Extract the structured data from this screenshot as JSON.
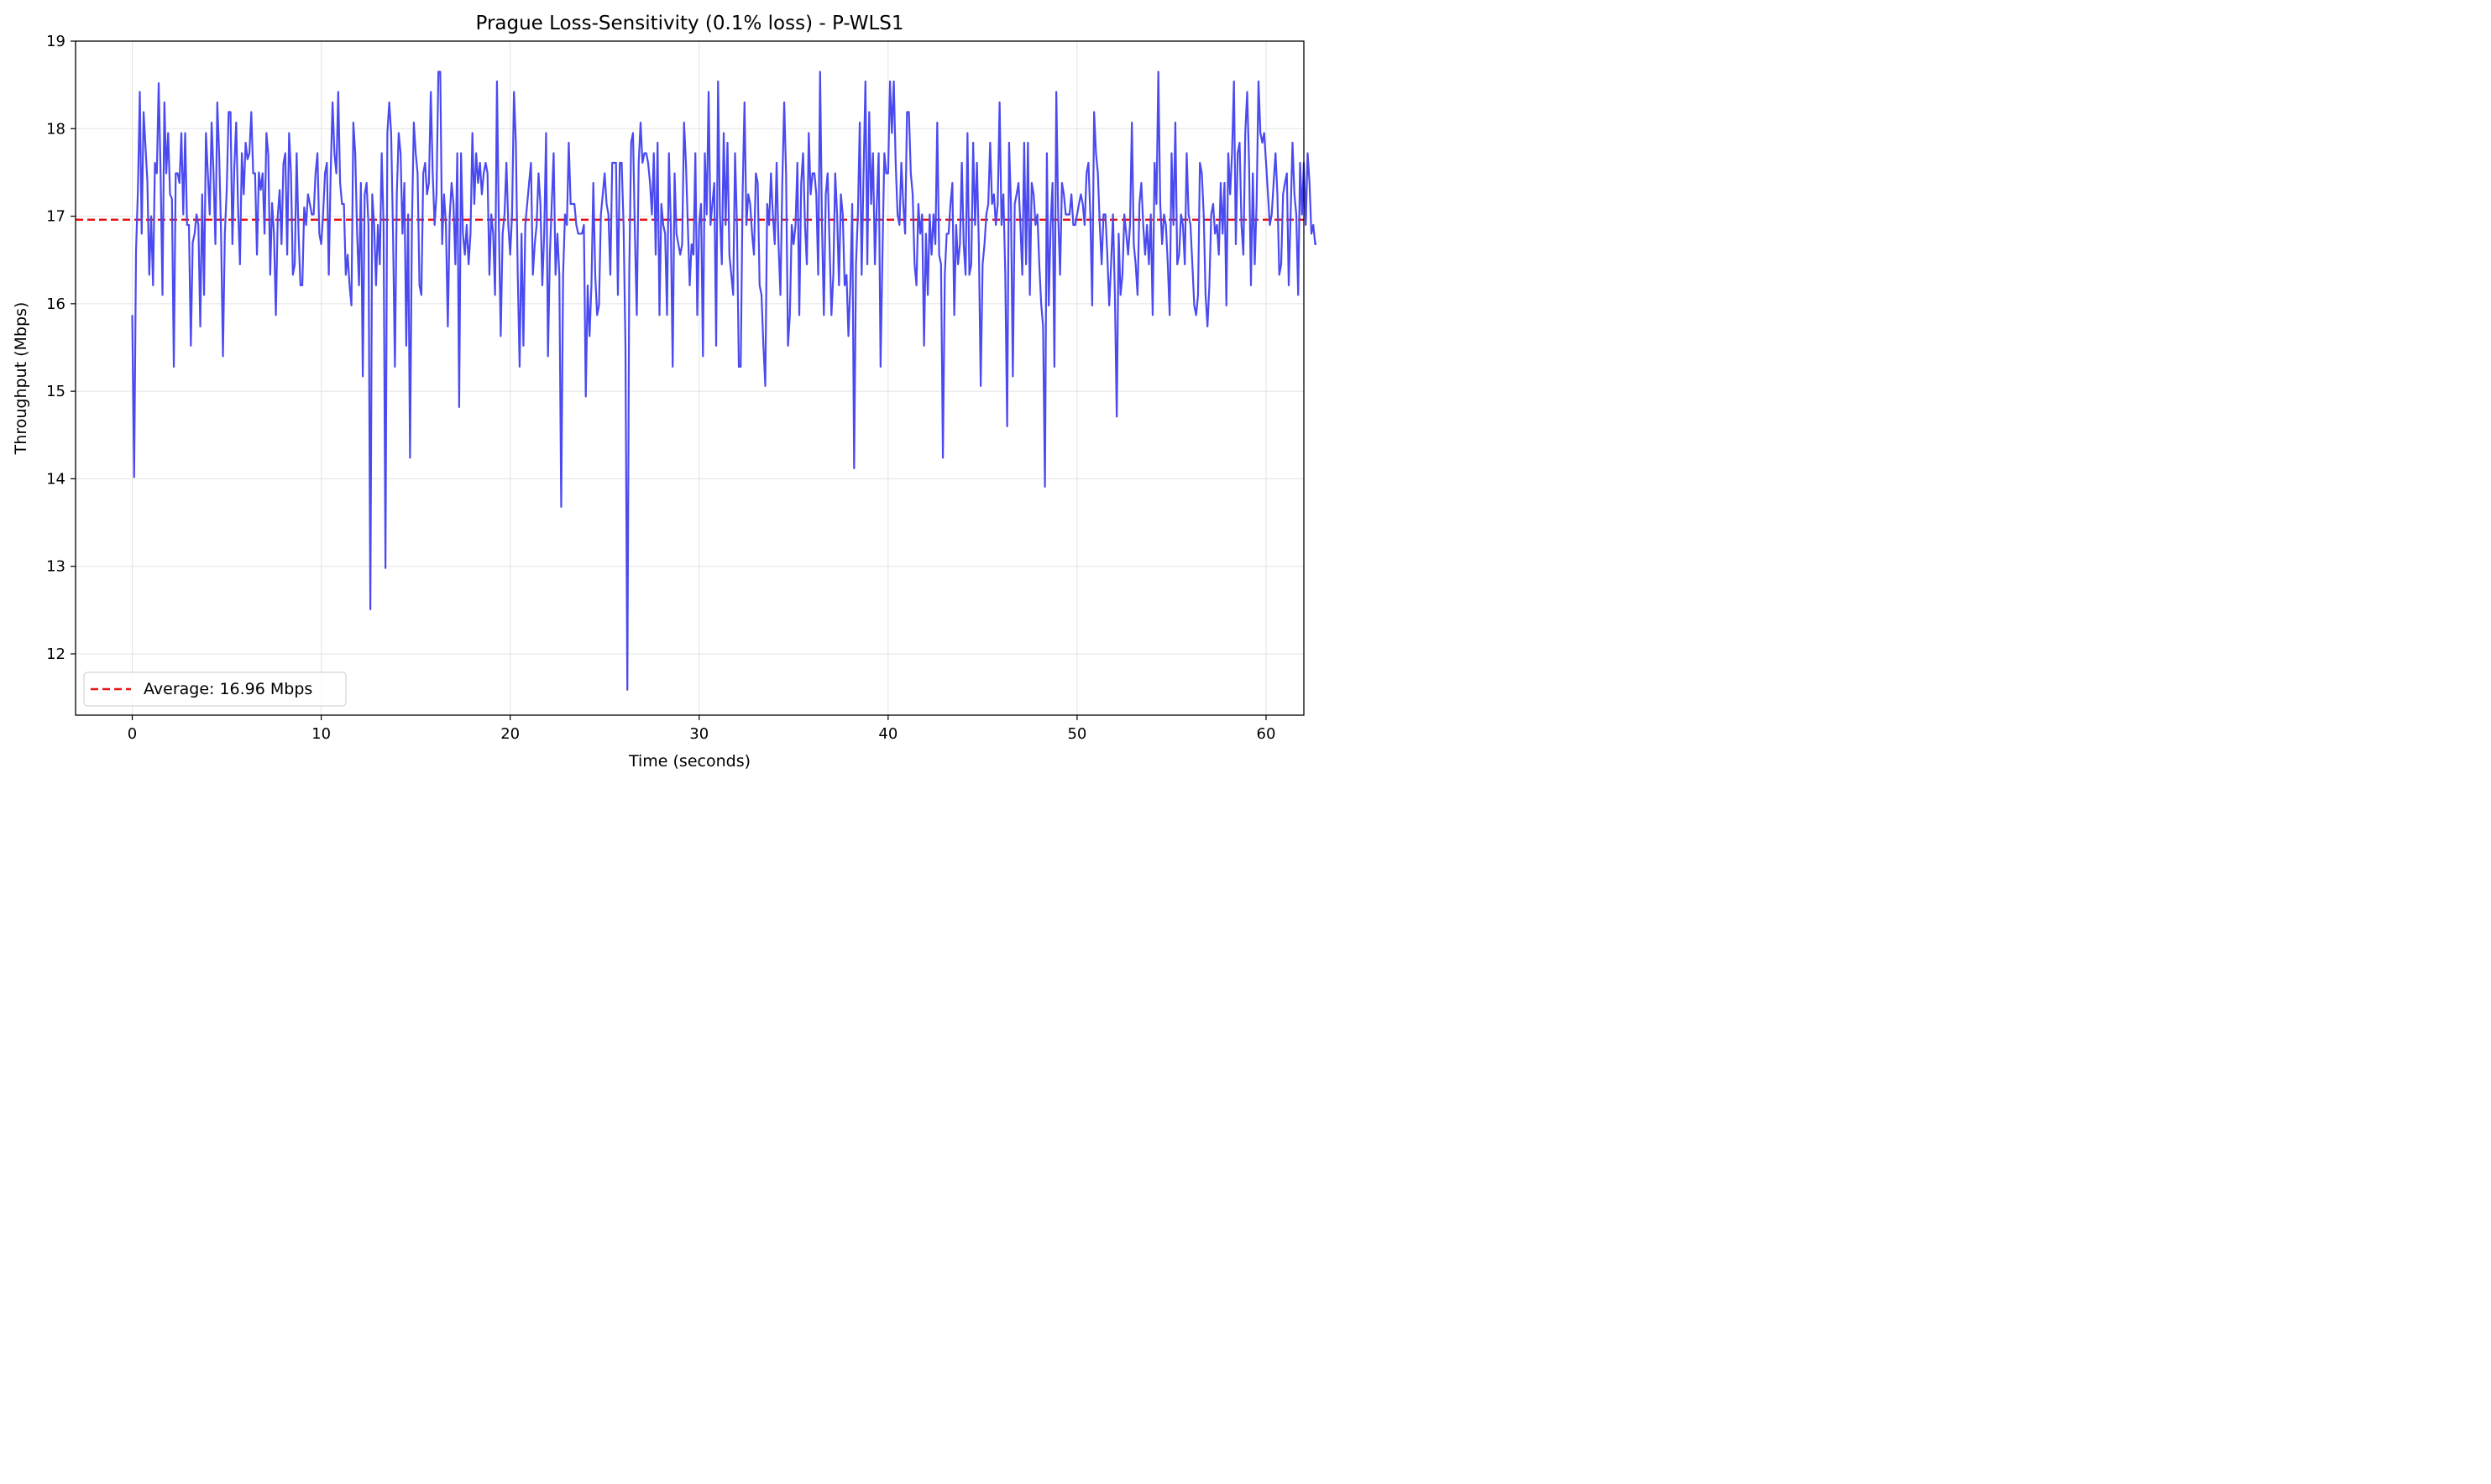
{
  "chart_data": {
    "type": "line",
    "title": "Prague Loss-Sensitivity (0.1% loss) - P-WLS1",
    "xlabel": "Time (seconds)",
    "ylabel": "Throughput (Mbps)",
    "xlim": [
      -3,
      62
    ],
    "ylim": [
      11.3,
      19
    ],
    "x_ticks": [
      0,
      10,
      20,
      30,
      40,
      50,
      60
    ],
    "y_ticks": [
      12,
      13,
      14,
      15,
      16,
      17,
      18,
      19
    ],
    "grid": true,
    "legend_position": "bottom-left",
    "legend_label": "Average: 16.96 Mbps",
    "average": 16.96,
    "x_step": 0.1,
    "series": [
      {
        "color": "#4a4af0",
        "values": [
          15.87,
          14.02,
          16.6,
          17.3,
          18.42,
          16.8,
          18.19,
          17.8,
          17.4,
          16.33,
          17.0,
          16.21,
          17.61,
          17.49,
          18.52,
          17.49,
          16.1,
          18.3,
          17.49,
          17.95,
          17.25,
          17.2,
          15.28,
          17.49,
          17.49,
          17.38,
          17.95,
          17.02,
          17.95,
          16.9,
          16.9,
          15.52,
          16.7,
          16.8,
          17.02,
          16.9,
          15.74,
          17.25,
          16.1,
          17.95,
          17.49,
          17.02,
          18.07,
          17.49,
          16.68,
          18.3,
          17.7,
          16.8,
          15.4,
          16.8,
          17.3,
          18.19,
          18.19,
          16.68,
          17.55,
          18.07,
          17.1,
          16.45,
          17.72,
          17.25,
          17.84,
          17.65,
          17.72,
          18.19,
          17.49,
          17.49,
          16.56,
          17.5,
          17.3,
          17.49,
          16.8,
          17.95,
          17.7,
          16.33,
          17.15,
          16.8,
          15.87,
          17.0,
          17.3,
          16.68,
          17.6,
          17.72,
          16.56,
          17.95,
          17.49,
          16.33,
          16.45,
          17.72,
          16.8,
          16.21,
          16.21,
          17.1,
          16.9,
          17.25,
          17.14,
          17.02,
          17.02,
          17.49,
          17.72,
          16.8,
          16.68,
          17.02,
          17.49,
          17.61,
          16.33,
          17.49,
          18.3,
          17.72,
          17.49,
          18.42,
          17.38,
          17.14,
          17.14,
          16.33,
          16.56,
          16.21,
          15.98,
          18.07,
          17.72,
          16.8,
          16.21,
          17.38,
          15.17,
          17.25,
          17.38,
          16.9,
          12.51,
          17.25,
          16.9,
          16.21,
          16.9,
          16.45,
          17.72,
          16.9,
          12.98,
          17.95,
          18.3,
          17.95,
          16.8,
          15.28,
          17.25,
          17.95,
          17.72,
          16.8,
          17.38,
          15.52,
          17.02,
          14.24,
          16.9,
          18.07,
          17.72,
          17.49,
          16.21,
          16.1,
          17.49,
          17.61,
          17.25,
          17.38,
          18.42,
          17.49,
          16.9,
          17.25,
          18.65,
          18.65,
          16.68,
          17.25,
          16.9,
          15.74,
          17.0,
          17.38,
          17.14,
          16.45,
          17.72,
          14.82,
          17.72,
          16.8,
          16.56,
          16.9,
          16.45,
          16.8,
          17.95,
          17.14,
          17.72,
          17.38,
          17.61,
          17.25,
          17.49,
          17.61,
          17.49,
          16.33,
          17.02,
          16.8,
          16.1,
          18.54,
          16.9,
          15.63,
          16.8,
          17.02,
          17.61,
          16.9,
          16.56,
          17.02,
          18.42,
          17.84,
          16.33,
          15.28,
          16.8,
          15.52,
          16.9,
          17.14,
          17.38,
          17.61,
          16.33,
          16.68,
          16.9,
          17.49,
          17.14,
          16.21,
          16.8,
          17.95,
          15.4,
          16.56,
          17.14,
          17.72,
          16.33,
          16.8,
          16.33,
          13.68,
          16.33,
          17.02,
          16.9,
          17.84,
          17.14,
          17.14,
          17.14,
          16.9,
          16.8,
          16.8,
          16.8,
          16.9,
          14.94,
          16.21,
          15.63,
          16.21,
          17.38,
          16.33,
          15.87,
          15.98,
          17.02,
          17.25,
          17.49,
          17.14,
          17.02,
          16.33,
          17.61,
          17.61,
          17.61,
          16.1,
          17.61,
          17.61,
          16.9,
          15.52,
          11.59,
          16.33,
          17.84,
          17.95,
          16.8,
          15.87,
          17.61,
          18.07,
          17.61,
          17.72,
          17.72,
          17.61,
          17.38,
          17.02,
          17.72,
          16.56,
          17.84,
          15.87,
          17.14,
          16.9,
          16.8,
          15.87,
          17.72,
          16.9,
          15.28,
          17.49,
          16.8,
          16.68,
          16.56,
          16.68,
          18.07,
          17.61,
          16.9,
          16.21,
          16.68,
          16.56,
          17.72,
          15.87,
          16.9,
          17.14,
          15.4,
          17.72,
          17.02,
          18.42,
          16.9,
          17.14,
          17.38,
          15.52,
          18.54,
          17.02,
          16.45,
          17.95,
          16.9,
          17.84,
          16.56,
          16.33,
          16.1,
          17.72,
          16.9,
          15.28,
          15.28,
          17.25,
          18.3,
          16.9,
          17.25,
          17.14,
          16.8,
          16.56,
          17.49,
          17.38,
          16.21,
          16.1,
          15.52,
          15.06,
          17.14,
          16.9,
          17.49,
          17.02,
          16.68,
          17.61,
          16.68,
          16.1,
          17.38,
          18.3,
          17.49,
          15.52,
          15.87,
          16.9,
          16.68,
          16.9,
          17.61,
          15.87,
          17.38,
          17.72,
          16.9,
          16.45,
          17.95,
          17.25,
          17.49,
          17.49,
          17.25,
          16.33,
          18.65,
          16.9,
          15.87,
          17.25,
          17.49,
          16.68,
          15.87,
          16.33,
          17.49,
          17.02,
          16.21,
          17.25,
          17.02,
          16.21,
          16.33,
          15.63,
          16.21,
          17.14,
          14.12,
          16.45,
          17.02,
          18.07,
          16.33,
          17.49,
          18.54,
          16.45,
          18.19,
          17.14,
          17.72,
          16.45,
          17.14,
          17.72,
          15.28,
          16.56,
          17.72,
          17.49,
          17.49,
          18.54,
          17.95,
          18.54,
          17.61,
          17.02,
          16.9,
          17.61,
          17.14,
          16.8,
          18.19,
          18.19,
          17.49,
          17.25,
          16.45,
          16.21,
          17.14,
          16.8,
          17.02,
          15.52,
          16.8,
          16.1,
          17.02,
          16.56,
          17.02,
          16.68,
          18.07,
          16.56,
          16.45,
          14.24,
          16.33,
          16.8,
          16.8,
          17.14,
          17.38,
          15.87,
          16.9,
          16.45,
          16.68,
          17.61,
          16.68,
          16.33,
          17.95,
          16.33,
          16.45,
          17.84,
          16.9,
          17.61,
          16.68,
          15.06,
          16.45,
          16.68,
          17.02,
          17.14,
          17.84,
          17.14,
          17.25,
          16.9,
          17.14,
          18.3,
          16.9,
          17.25,
          16.33,
          14.6,
          17.84,
          17.14,
          15.17,
          17.14,
          17.25,
          17.38,
          16.9,
          16.33,
          17.84,
          16.45,
          17.84,
          16.1,
          17.38,
          17.25,
          16.9,
          17.02,
          16.45,
          16.0,
          15.74,
          13.91,
          17.72,
          15.98,
          16.9,
          17.38,
          15.28,
          18.42,
          17.02,
          16.33,
          17.38,
          17.25,
          17.02,
          17.02,
          17.02,
          17.25,
          16.9,
          16.9,
          17.02,
          17.14,
          17.25,
          17.14,
          16.9,
          17.49,
          17.61,
          17.02,
          15.98,
          18.19,
          17.72,
          17.49,
          16.9,
          16.45,
          17.02,
          17.02,
          16.56,
          15.98,
          16.45,
          17.02,
          16.1,
          14.71,
          16.8,
          16.1,
          16.33,
          17.02,
          16.8,
          16.56,
          16.9,
          18.07,
          16.68,
          16.45,
          16.1,
          17.14,
          17.38,
          16.9,
          16.56,
          16.9,
          16.45,
          17.02,
          15.87,
          17.61,
          17.14,
          18.65,
          17.14,
          16.68,
          17.02,
          16.9,
          16.45,
          15.87,
          17.72,
          16.9,
          18.07,
          16.45,
          16.56,
          17.02,
          16.9,
          16.45,
          17.72,
          17.02,
          16.9,
          16.45,
          15.98,
          15.87,
          16.1,
          17.61,
          17.49,
          17.02,
          16.1,
          15.74,
          16.21,
          17.02,
          17.14,
          16.8,
          16.9,
          16.56,
          17.38,
          16.8,
          17.38,
          15.98,
          17.72,
          17.25,
          17.72,
          18.54,
          16.68,
          17.72,
          17.84,
          16.9,
          16.56,
          17.95,
          18.42,
          17.61,
          16.21,
          17.49,
          16.45,
          17.14,
          18.54,
          17.95,
          17.84,
          17.95,
          17.61,
          17.25,
          16.9,
          17.02,
          17.38,
          17.72,
          17.25,
          16.33,
          16.45,
          17.25,
          17.38,
          17.49,
          16.21,
          17.02,
          17.84,
          17.25,
          17.02,
          16.1,
          17.61,
          17.02,
          17.61,
          16.9,
          17.72,
          17.38,
          16.8,
          16.9,
          16.68,
          16.68,
          17.14,
          16.56,
          16.68,
          16.8,
          16.9,
          15.4,
          16.68,
          16.9,
          16.8,
          18.54,
          16.9,
          17.49,
          16.56,
          18.42,
          16.68,
          16.1,
          16.68,
          16.33,
          15.98,
          15.87,
          16.56,
          15.28,
          15.87
        ]
      }
    ]
  }
}
